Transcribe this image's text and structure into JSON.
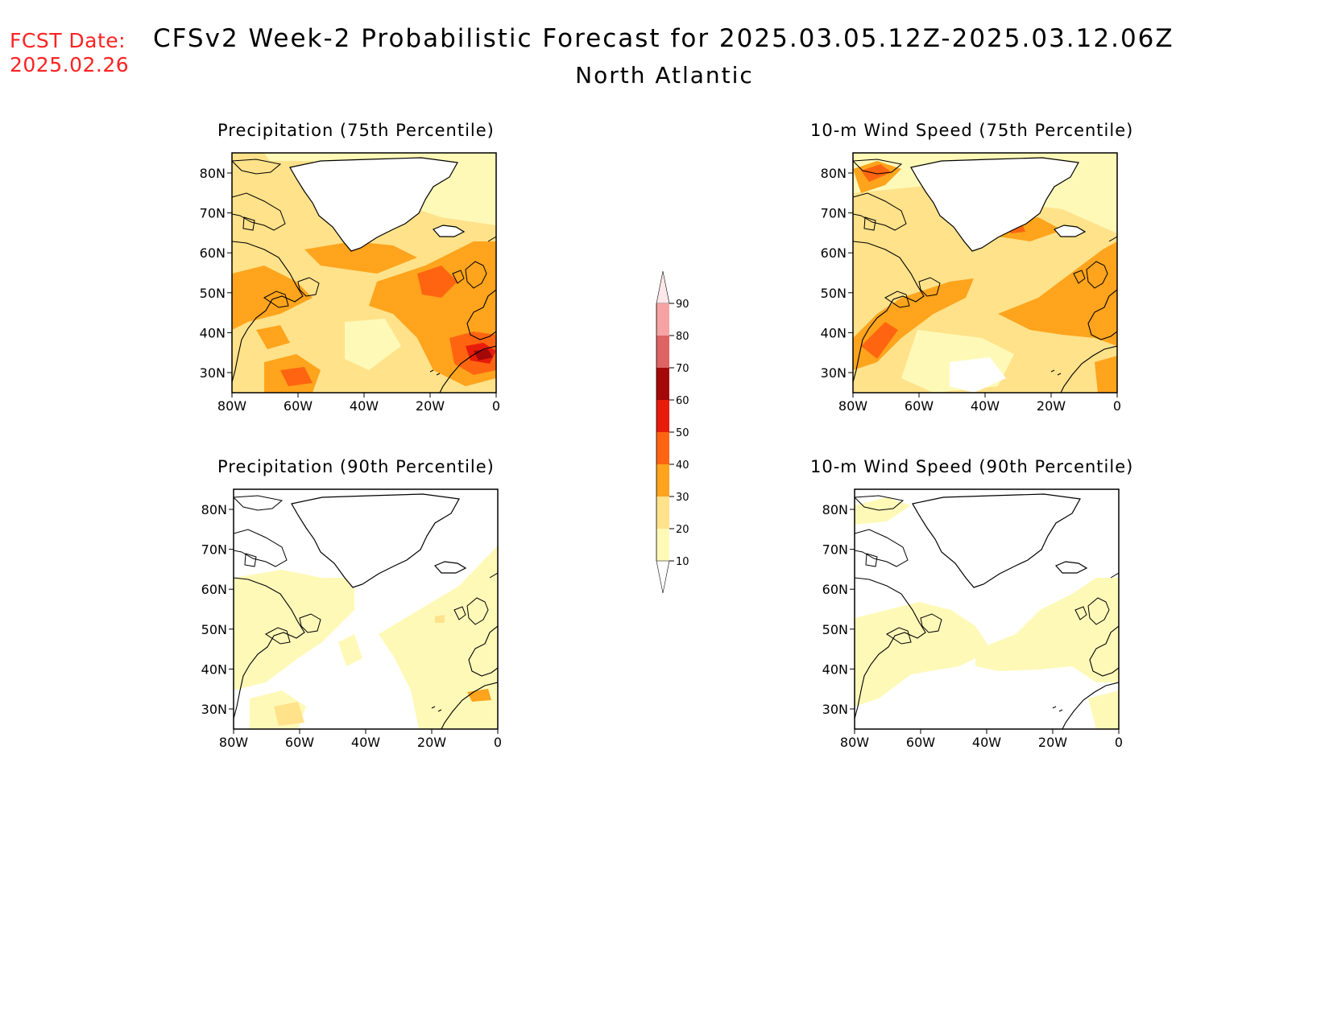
{
  "header": {
    "fcst_label": "FCST Date:",
    "fcst_date": "2025.02.26",
    "title": "CFSv2 Week-2 Probabilistic Forecast for 2025.03.05.12Z-2025.03.12.06Z",
    "subtitle": "North Atlantic"
  },
  "panels": [
    {
      "title": "Precipitation (75th Percentile)"
    },
    {
      "title": "10-m Wind Speed (75th Percentile)"
    },
    {
      "title": "Precipitation (90th Percentile)"
    },
    {
      "title": "10-m Wind Speed (90th Percentile)"
    }
  ],
  "axes": {
    "lat_labels": [
      "80N",
      "70N",
      "60N",
      "50N",
      "40N",
      "30N"
    ],
    "lon_labels": [
      "80W",
      "60W",
      "40W",
      "20W",
      "0"
    ]
  },
  "colorbar": {
    "levels": [
      "10",
      "20",
      "30",
      "40",
      "50",
      "60",
      "70",
      "80",
      "90"
    ],
    "colors": [
      "#fff9b8",
      "#ffe28a",
      "#ffa41c",
      "#ff6510",
      "#e81c0a",
      "#a40808",
      "#de6464",
      "#f5a3a3",
      "#ffe8ea"
    ]
  },
  "shading_colors": {
    "p10": "#fff9b8",
    "p20": "#ffe28a",
    "p30": "#ffa41c",
    "p40": "#ff6510",
    "p50": "#e81c0a",
    "p60": "#a40808"
  }
}
